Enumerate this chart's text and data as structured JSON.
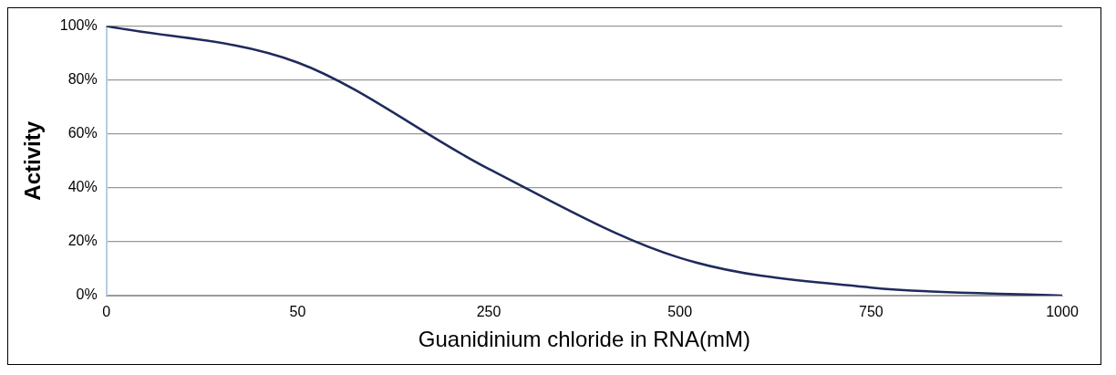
{
  "chart_data": {
    "type": "line",
    "xlabel": "Guanidinium chloride in RNA(mM)",
    "ylabel": "Activity",
    "categories": [
      "0",
      "50",
      "250",
      "500",
      "750",
      "1000"
    ],
    "series": [
      {
        "color": "#1f2a5c",
        "values": [
          100,
          86.5,
          47,
          14,
          3,
          0
        ]
      }
    ],
    "ylim": [
      0,
      100
    ],
    "yticks": [
      {
        "value": 0,
        "label": "0%"
      },
      {
        "value": 20,
        "label": "20%"
      },
      {
        "value": 40,
        "label": "40%"
      },
      {
        "value": 60,
        "label": "60%"
      },
      {
        "value": 80,
        "label": "80%"
      },
      {
        "value": 100,
        "label": "100%"
      }
    ],
    "grid": "y",
    "legend": false,
    "marker": "none",
    "line_style": "solid"
  }
}
